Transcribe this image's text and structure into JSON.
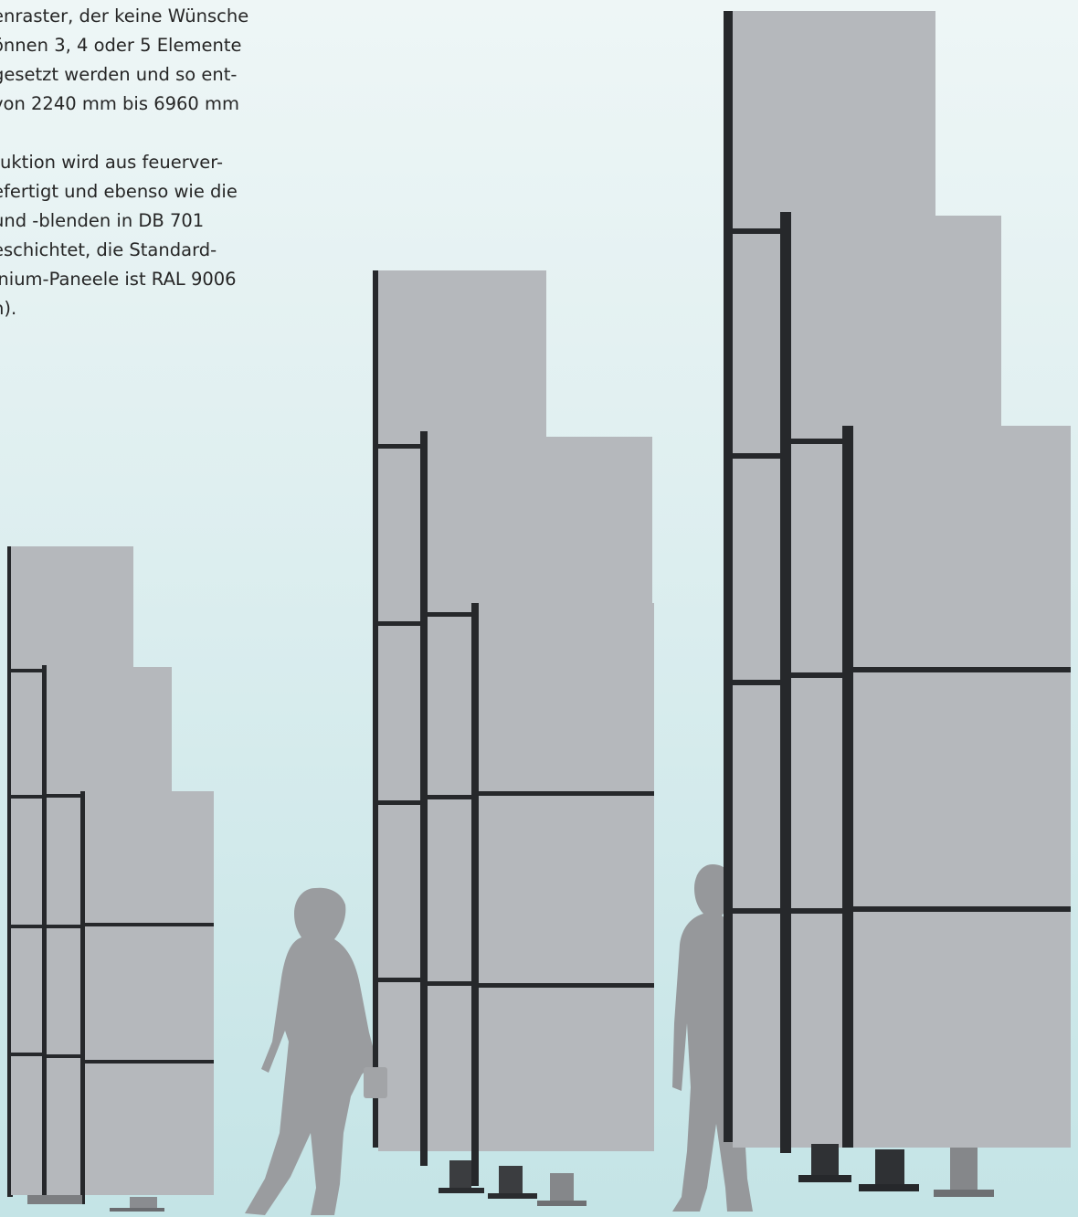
{
  "paragraph_1": [
    "enraster, der keine Wünsche",
    "önnen 3, 4 oder 5 Elemente",
    "gesetzt werden und so ent-",
    "von 2240 mm bis 6960 mm"
  ],
  "paragraph_2": [
    "ruktion wird aus feuerver-",
    "efertigt und ebenso wie die",
    " und -blenden in DB 701",
    "eschichtet, die Standard-",
    "inium-Paneele ist RAL 9006",
    "n)."
  ],
  "colors": {
    "panel": "#b5b8bc",
    "frame": "#26282b",
    "silhouette": "#999b9e",
    "foot": "#7c7e81"
  }
}
